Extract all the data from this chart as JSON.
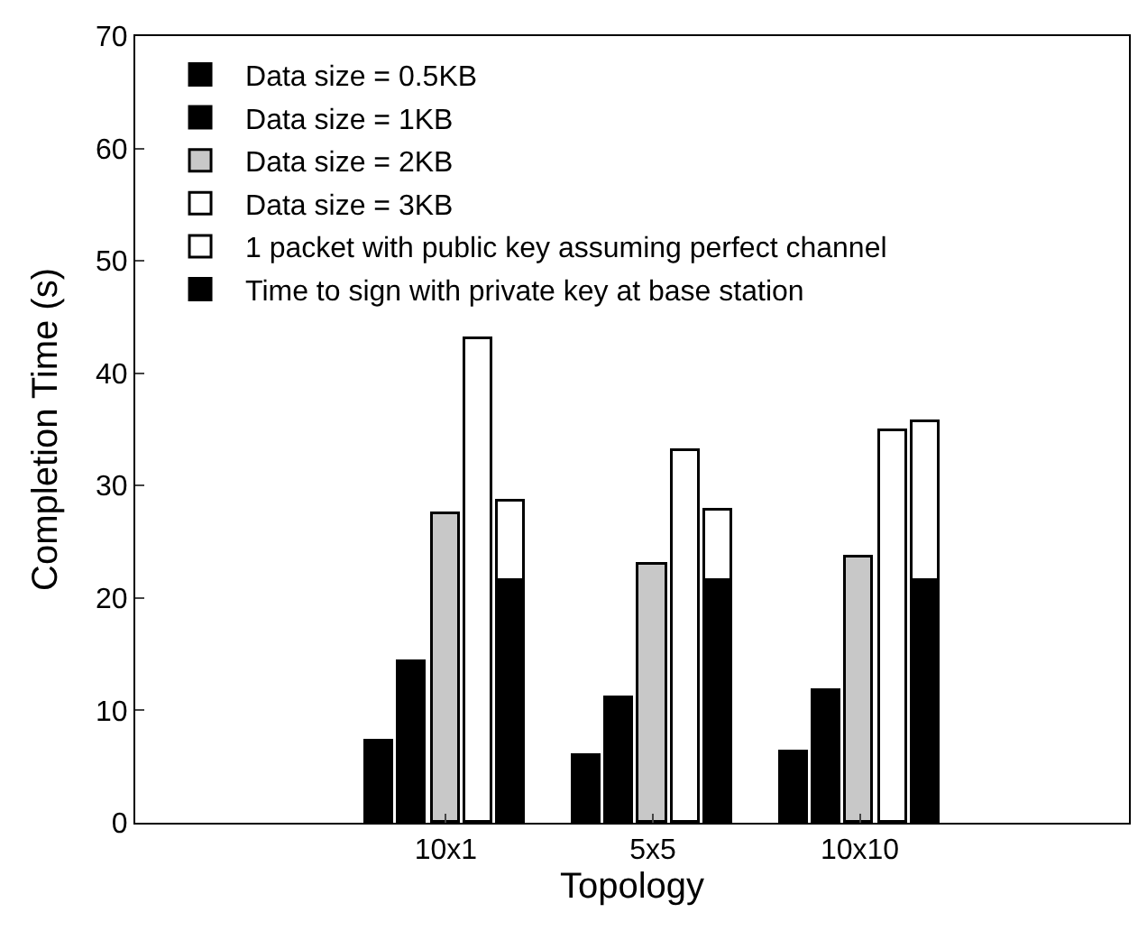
{
  "chart_data": {
    "type": "bar",
    "xlabel": "Topology",
    "ylabel": "Completion Time (s)",
    "categories": [
      "10x1",
      "5x5",
      "10x10"
    ],
    "series": [
      {
        "name": "Data size = 0.5KB",
        "color": "#000000",
        "values": [
          7.3,
          6.0,
          6.2
        ]
      },
      {
        "name": "Data size = 1KB",
        "color": "#000000",
        "values": [
          14.3,
          11.0,
          11.8
        ]
      },
      {
        "name": "Data size = 2KB",
        "color": "#c8c8c8",
        "values": [
          27.5,
          23.0,
          23.6
        ]
      },
      {
        "name": "Data size = 3KB",
        "color": "#ffffff",
        "values": [
          43.0,
          33.0,
          34.9
        ]
      },
      {
        "name": "1 packet with public key assuming perfect channel",
        "color": "#ffffff",
        "values": [
          7.1,
          6.3,
          14.2
        ],
        "base": [
          21.5,
          21.5,
          21.5
        ]
      },
      {
        "name": "Time to sign with private key at base station",
        "color": "#000000",
        "values": [
          21.5,
          21.5,
          21.5
        ]
      }
    ],
    "ylim": [
      0,
      70
    ],
    "yticks": [
      0,
      10,
      20,
      30,
      40,
      50,
      60,
      70
    ],
    "legend": "top left"
  }
}
